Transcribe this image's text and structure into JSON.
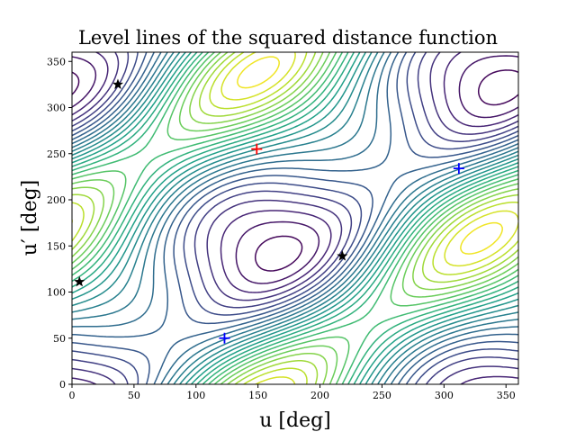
{
  "chart_data": {
    "type": "contour",
    "title": "Level lines of the squared distance function",
    "xlabel": "u [deg]",
    "ylabel": "u′ [deg]",
    "xlim": [
      0,
      360
    ],
    "ylim": [
      0,
      360
    ],
    "xticks": [
      0,
      50,
      100,
      150,
      200,
      250,
      300,
      350
    ],
    "yticks": [
      0,
      50,
      100,
      150,
      200,
      250,
      300,
      350
    ],
    "colormap": "viridis",
    "colormap_note": "dark purple = low levels, yellow = high levels",
    "markers": {
      "red_plus": [
        {
          "x": 149,
          "y": 255
        }
      ],
      "blue_plus": [
        {
          "x": 123,
          "y": 50
        },
        {
          "x": 312,
          "y": 234
        }
      ],
      "black_star": [
        {
          "x": 37,
          "y": 325
        },
        {
          "x": 6,
          "y": 111
        },
        {
          "x": 218,
          "y": 139
        }
      ]
    },
    "marker_colors": {
      "red_plus": "#ff0000",
      "blue_plus": "#0000ff",
      "black_star": "#000000"
    }
  }
}
